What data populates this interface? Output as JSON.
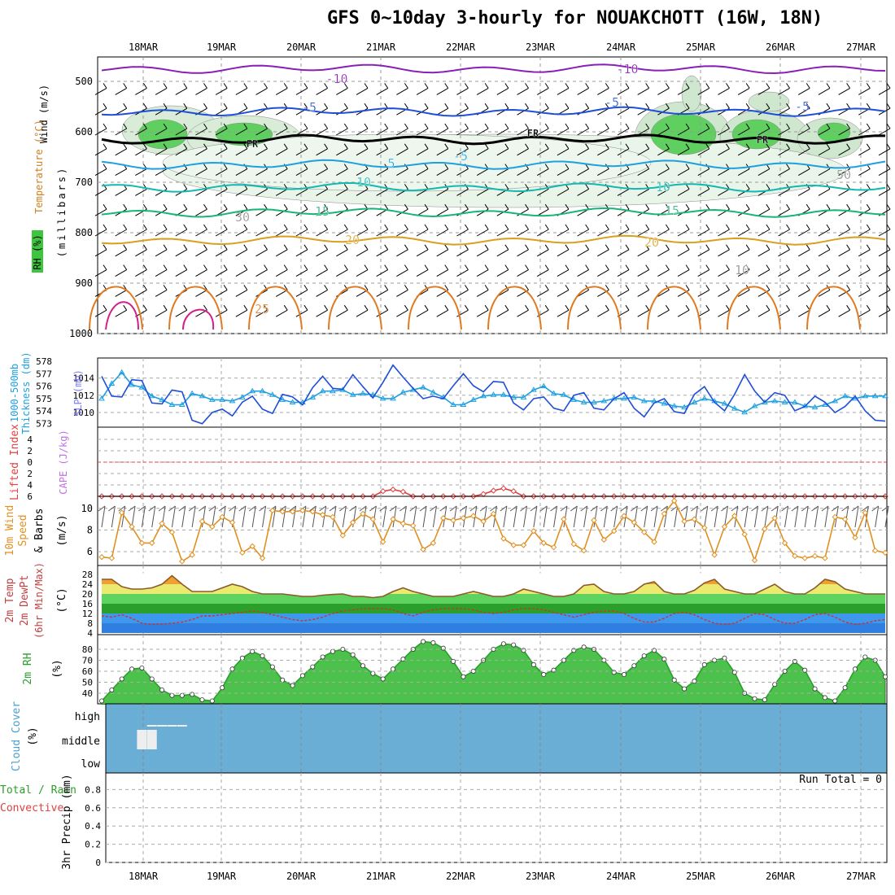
{
  "title": "GFS 0~10day 3-hourly for NOUAKCHOTT (16W, 18N)",
  "run_total_label": "Run Total = 0",
  "dates": [
    "18MAR",
    "19MAR",
    "20MAR",
    "21MAR",
    "22MAR",
    "23MAR",
    "24MAR",
    "25MAR",
    "26MAR",
    "27MAR"
  ],
  "colors": {
    "purple": "#8a1fb8",
    "blue": "#1f4fd8",
    "lightblue": "#1ea0e0",
    "teal": "#13b8b0",
    "seagreen": "#18b478",
    "gold": "#d8a020",
    "orange": "#e07a20",
    "magenta": "#d0208a",
    "rh_fill": "#3ec43e",
    "cloud_bg": "#6aaed6",
    "tick_dark": "#555555"
  },
  "panels": {
    "upper": {
      "left_labels": [
        {
          "text": "Wind (m/s)",
          "color": "#000000"
        },
        {
          "text": "Temperature (°C)",
          "color": "#d08020"
        },
        {
          "text": "RH (%)",
          "color": "#000000"
        },
        {
          "text": "(millibars)",
          "color": "#000000"
        }
      ]
    },
    "thickness": {
      "left_label": "1000-500mb Thickness (dm)",
      "right_label": "SLP (mb)"
    },
    "stability": {
      "left_label": "Lifted Index",
      "right_label": "CAPE (J/kg)"
    },
    "wind10m": {
      "left_label": "10m Wind Speed & Barbs",
      "unit": "(m/s)"
    },
    "temp2m": {
      "left_label": "2m Temp 2m DewPt (6hr Min/Max)",
      "unit": "(°C)"
    },
    "rh2m": {
      "left_label": "2m RH",
      "unit": "(%)"
    },
    "cloud": {
      "left_label": "Cloud Cover",
      "unit": "(%)",
      "levels": [
        "high",
        "middle",
        "low"
      ]
    },
    "precip": {
      "left_label": "Total / Rain Convective",
      "unit": "3hr Precip (mm)"
    }
  },
  "contour_labels": [
    {
      "text": "-10",
      "color": "#8a1fb8"
    },
    {
      "text": "-10",
      "color": "#8a1fb8"
    },
    {
      "text": "-5",
      "color": "#1f4fd8"
    },
    {
      "text": "-5",
      "color": "#1f4fd8"
    },
    {
      "text": "-5",
      "color": "#1f4fd8"
    },
    {
      "text": "-5",
      "color": "#1ea0e0"
    },
    {
      "text": "5",
      "color": "#1ea0e0"
    },
    {
      "text": "10",
      "color": "#13b8b0"
    },
    {
      "text": "10",
      "color": "#13b8b0"
    },
    {
      "text": "15",
      "color": "#18b478"
    },
    {
      "text": "15",
      "color": "#18b478"
    },
    {
      "text": "20",
      "color": "#d8a020"
    },
    {
      "text": "20",
      "color": "#d8a020"
    },
    {
      "text": "25",
      "color": "#e07a20"
    },
    {
      "text": "FR",
      "color": "#000000"
    },
    {
      "text": "FR",
      "color": "#000000"
    },
    {
      "text": "FR",
      "color": "#000000"
    },
    {
      "text": "30",
      "color": "#888888"
    },
    {
      "text": "50",
      "color": "#888888"
    },
    {
      "text": "10",
      "color": "#888888"
    }
  ],
  "chart_data": [
    {
      "type": "line",
      "name": "upper-air cross section",
      "ylabel": "millibars",
      "ylim": [
        1000,
        450
      ],
      "yticks": [
        500,
        600,
        700,
        800,
        900,
        1000
      ],
      "x": [
        "18MAR",
        "19MAR",
        "20MAR",
        "21MAR",
        "22MAR",
        "23MAR",
        "24MAR",
        "25MAR",
        "26MAR",
        "27MAR"
      ],
      "isotherms_C": [
        -10,
        -5,
        0,
        5,
        10,
        15,
        20,
        25
      ],
      "isotherm_levels_mb": {
        "-10": 475,
        "-5": 560,
        "0": 615,
        "5": 665,
        "10": 710,
        "15": 760,
        "20": 815
      },
      "rh_contours_pct": [
        10,
        30,
        50,
        70,
        90
      ]
    },
    {
      "type": "line",
      "name": "thickness and SLP",
      "thickness_ticks_dm": [
        573,
        574,
        575,
        576,
        577,
        578
      ],
      "slp_ticks_mb": [
        1010,
        1012,
        1014
      ],
      "series": [
        {
          "name": "Thickness 1000-500mb (dm)",
          "color": "#1ea0e0",
          "values": [
            575.0,
            576.2,
            577.1,
            576.1,
            575.9,
            575.2,
            574.9,
            574.5,
            574.5,
            575.4,
            575.2,
            574.9,
            574.9,
            574.8,
            575.1,
            575.6,
            575.6,
            575.3,
            574.9,
            574.7,
            574.7,
            575.1,
            575.6,
            575.6,
            575.7,
            575.3,
            575.4,
            575.3,
            575.0,
            575.0,
            575.5,
            575.7,
            575.9,
            575.5,
            575.1,
            574.5,
            574.5,
            574.9,
            575.2,
            575.3,
            575.3,
            575.1,
            575.1,
            575.7,
            576.0,
            575.4,
            575.3,
            574.9,
            574.7,
            574.7,
            574.8,
            575.0,
            575.0,
            575.1,
            574.8,
            574.8,
            574.6,
            574.4,
            574.3,
            574.7,
            575.0,
            574.8,
            574.6,
            574.2,
            573.9,
            574.4,
            574.7,
            574.8,
            574.7,
            574.7,
            574.4,
            574.3,
            574.5,
            574.8,
            575.2,
            575.0,
            575.2,
            575.2,
            575.2
          ]
        },
        {
          "name": "SLP (mb)",
          "color": "#1f4fd8",
          "values": [
            1014.2,
            1011.9,
            1011.8,
            1013.8,
            1013.7,
            1011.1,
            1011.0,
            1012.6,
            1012.4,
            1009.1,
            1008.7,
            1010.0,
            1010.4,
            1009.6,
            1011.2,
            1011.9,
            1010.4,
            1009.9,
            1012.1,
            1011.8,
            1010.9,
            1012.9,
            1014.2,
            1012.8,
            1012.7,
            1014.4,
            1013.0,
            1011.7,
            1013.5,
            1015.5,
            1014.1,
            1012.8,
            1011.6,
            1011.9,
            1011.6,
            1013.1,
            1014.5,
            1013.1,
            1012.4,
            1013.6,
            1013.5,
            1011.1,
            1010.3,
            1011.6,
            1011.8,
            1010.5,
            1010.2,
            1012.0,
            1012.3,
            1010.5,
            1010.3,
            1011.6,
            1012.3,
            1010.5,
            1009.5,
            1011.1,
            1011.6,
            1010.1,
            1009.9,
            1012.1,
            1013.0,
            1011.2,
            1010.2,
            1012.1,
            1014.4,
            1012.5,
            1011.2,
            1012.3,
            1012.0,
            1010.2,
            1010.7,
            1011.9,
            1011.2,
            1010.0,
            1010.7,
            1011.9,
            1010.2,
            1009.1,
            1009.0
          ]
        }
      ]
    },
    {
      "type": "line",
      "name": "lifted index and CAPE",
      "lifted_index_ticks": [
        -4,
        -2,
        0,
        2,
        4,
        6
      ],
      "zero_line": 0,
      "series": [
        {
          "name": "Lifted Index",
          "color": "#e04040",
          "values": [
            6,
            6,
            6,
            6,
            6,
            6,
            6,
            6,
            6,
            6,
            6,
            6,
            6,
            6,
            6,
            6,
            6,
            6,
            6,
            6,
            6,
            6,
            6,
            6,
            6,
            6,
            6,
            6,
            5.1,
            4.8,
            5.2,
            6,
            6,
            6,
            6,
            6,
            6,
            6,
            5.6,
            5.0,
            4.6,
            5.1,
            6,
            6,
            6,
            6,
            6,
            6,
            6,
            6,
            6,
            6,
            6,
            6,
            6,
            6,
            6,
            6,
            6,
            6,
            6,
            6,
            6,
            6,
            6,
            6,
            6,
            6,
            6,
            6,
            6,
            6,
            6,
            6,
            6,
            6,
            6,
            6,
            6
          ]
        }
      ]
    },
    {
      "type": "line",
      "name": "10m wind speed",
      "ylabel": "(m/s)",
      "yticks": [
        6,
        8,
        10
      ],
      "series": [
        {
          "name": "10m Wind Speed",
          "color": "#e09020",
          "values": [
            5.5,
            5.4,
            9.6,
            8.3,
            6.8,
            6.8,
            8.6,
            7.8,
            5.1,
            5.7,
            8.8,
            8.3,
            9.2,
            8.7,
            5.9,
            6.5,
            5.4,
            9.8,
            9.7,
            9.7,
            9.8,
            9.7,
            9.4,
            9.2,
            7.5,
            8.7,
            9.5,
            9.0,
            6.9,
            9.0,
            8.6,
            8.4,
            6.2,
            6.8,
            9.1,
            8.9,
            9.1,
            9.3,
            8.8,
            9.5,
            7.2,
            6.6,
            6.6,
            7.9,
            6.8,
            6.4,
            9.0,
            6.7,
            6.1,
            8.9,
            7.1,
            7.9,
            9.3,
            8.7,
            7.8,
            6.9,
            9.5,
            10.7,
            8.8,
            9.0,
            8.2,
            5.7,
            8.3,
            9.3,
            7.6,
            5.2,
            8.1,
            9.1,
            6.8,
            5.6,
            5.4,
            5.6,
            5.4,
            9.2,
            9.0,
            7.3,
            9.6,
            6.1,
            5.9
          ]
        }
      ]
    },
    {
      "type": "area",
      "name": "2m temperature and dewpoint",
      "ylabel": "(°C)",
      "yticks": [
        4,
        8,
        12,
        16,
        20,
        24,
        28
      ],
      "series": [
        {
          "name": "2m Temp",
          "color": "#8b5a2b",
          "values": [
            26.0,
            26.0,
            23.0,
            22.0,
            22.0,
            22.5,
            24.0,
            27.5,
            24.0,
            21.0,
            21.0,
            21.0,
            22.5,
            24.0,
            23.0,
            21.0,
            20.0,
            20.0,
            20.0,
            19.5,
            19.0,
            19.0,
            19.5,
            19.8,
            20.0,
            19.0,
            19.0,
            18.5,
            19.0,
            21.0,
            22.5,
            21.0,
            20.0,
            19.0,
            19.0,
            19.0,
            20.0,
            21.0,
            20.0,
            19.0,
            19.0,
            20.0,
            22.0,
            21.0,
            20.0,
            19.0,
            19.0,
            20.0,
            23.5,
            24.0,
            21.0,
            20.0,
            20.0,
            21.0,
            24.0,
            25.0,
            21.0,
            20.0,
            20.0,
            21.5,
            24.5,
            26.0,
            22.0,
            21.0,
            20.0,
            20.0,
            22.0,
            24.0,
            21.0,
            20.0,
            20.0,
            22.5,
            26.0,
            25.0,
            22.0,
            21.0,
            20.0,
            20.0,
            20.0
          ]
        },
        {
          "name": "2m DewPt",
          "color": "#cc3333",
          "values": [
            11.0,
            10.5,
            11.5,
            10.0,
            8.0,
            7.5,
            7.7,
            8.0,
            8.5,
            9.5,
            11.0,
            11.0,
            11.5,
            12.0,
            12.5,
            13.0,
            12.5,
            11.5,
            10.5,
            9.5,
            9.0,
            9.5,
            10.5,
            12.0,
            13.0,
            13.5,
            14.0,
            14.0,
            14.0,
            13.5,
            12.0,
            11.0,
            12.5,
            13.5,
            14.0,
            14.0,
            14.0,
            13.5,
            12.5,
            12.0,
            12.5,
            13.5,
            14.0,
            14.0,
            13.5,
            12.5,
            11.5,
            10.5,
            11.5,
            12.5,
            13.0,
            13.0,
            12.0,
            10.0,
            8.5,
            8.5,
            10.0,
            12.0,
            12.5,
            11.5,
            9.5,
            8.0,
            7.5,
            8.0,
            10.0,
            12.0,
            11.5,
            9.5,
            8.0,
            8.0,
            9.5,
            11.5,
            12.0,
            10.5,
            8.5,
            7.5,
            8.0,
            9.0,
            9.5
          ]
        }
      ]
    },
    {
      "type": "area",
      "name": "2m RH",
      "ylabel": "(%)",
      "yticks": [
        40,
        50,
        60,
        70,
        80
      ],
      "series": [
        {
          "name": "2m RH",
          "color": "#2aa02a",
          "values": [
            33,
            43,
            53,
            62,
            63,
            53,
            43,
            38,
            38,
            39,
            34,
            33,
            45,
            62,
            72,
            78,
            74,
            64,
            52,
            47,
            56,
            64,
            73,
            78,
            80,
            75,
            65,
            58,
            53,
            62,
            71,
            80,
            87,
            86,
            81,
            69,
            55,
            60,
            70,
            80,
            85,
            84,
            79,
            66,
            57,
            61,
            70,
            79,
            82,
            80,
            70,
            59,
            57,
            65,
            74,
            79,
            71,
            52,
            44,
            51,
            66,
            70,
            72,
            59,
            40,
            35,
            34,
            48,
            60,
            69,
            61,
            44,
            36,
            33,
            45,
            62,
            73,
            70,
            55
          ]
        }
      ]
    },
    {
      "type": "bar",
      "name": "cloud cover",
      "ylabel": "(%)",
      "levels": [
        "high",
        "middle",
        "low"
      ],
      "series": [
        {
          "name": "high",
          "values": [
            0,
            0,
            0,
            0,
            0,
            5,
            5,
            5,
            5,
            0,
            0,
            0,
            0,
            0,
            0,
            0,
            0,
            0,
            0,
            0,
            0,
            0,
            0,
            0,
            0,
            0,
            0,
            0,
            0,
            0,
            0,
            0,
            0,
            0,
            0,
            0,
            0,
            0,
            0,
            0,
            0,
            0,
            0,
            0,
            0,
            0,
            0,
            0,
            0,
            0,
            0,
            0,
            0,
            0,
            0,
            0,
            0,
            0,
            0,
            0,
            0,
            0,
            0,
            0,
            0,
            0,
            0,
            0,
            0,
            0,
            0,
            0,
            0,
            0,
            0,
            0,
            0,
            0,
            0
          ]
        },
        {
          "name": "middle",
          "values": [
            0,
            0,
            0,
            0,
            80,
            80,
            0,
            0,
            0,
            0,
            0,
            0,
            0,
            0,
            0,
            0,
            0,
            0,
            0,
            0,
            0,
            0,
            0,
            0,
            0,
            0,
            0,
            0,
            0,
            0,
            0,
            0,
            0,
            0,
            0,
            0,
            0,
            0,
            0,
            0,
            0,
            0,
            0,
            0,
            0,
            0,
            0,
            0,
            0,
            0,
            0,
            0,
            0,
            0,
            0,
            0,
            0,
            0,
            0,
            0,
            0,
            0,
            0,
            0,
            0,
            0,
            0,
            0,
            0,
            0,
            0,
            0,
            0,
            0,
            0,
            0,
            0,
            0,
            0
          ]
        }
      ]
    },
    {
      "type": "bar",
      "name": "3hr precip",
      "ylabel": "3hr Precip (mm)",
      "yticks": [
        0,
        0.2,
        0.4,
        0.6,
        0.8
      ],
      "ylim": [
        0,
        1
      ],
      "series": [
        {
          "name": "Total",
          "values": []
        }
      ]
    }
  ]
}
